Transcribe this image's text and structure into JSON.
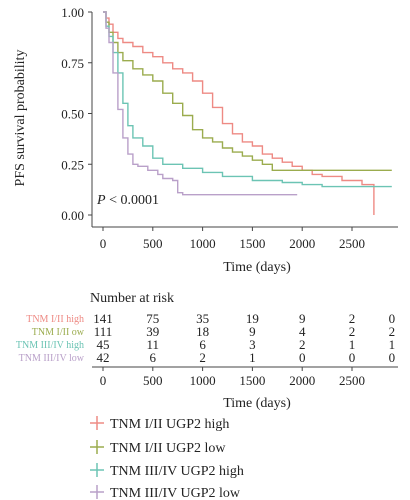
{
  "chart_data": {
    "type": "line",
    "subtype": "kaplan-meier step curves",
    "title": "",
    "xlabel": "Time (days)",
    "ylabel": "PFS survival probability",
    "xlim": [
      0,
      2900
    ],
    "ylim": [
      0,
      1
    ],
    "x_ticks": [
      0,
      500,
      1000,
      1500,
      2000,
      2500
    ],
    "y_ticks": [
      "0.00",
      "0.25",
      "0.50",
      "0.75",
      "1.00"
    ],
    "grid": false,
    "annotation": "P < 0.0001",
    "series": [
      {
        "name": "TNM I/II UGP2 high",
        "color": "#ee8a84",
        "points": [
          [
            0,
            1.0
          ],
          [
            30,
            0.97
          ],
          [
            60,
            0.94
          ],
          [
            100,
            0.9
          ],
          [
            150,
            0.87
          ],
          [
            200,
            0.85
          ],
          [
            300,
            0.83
          ],
          [
            400,
            0.8
          ],
          [
            500,
            0.78
          ],
          [
            600,
            0.75
          ],
          [
            700,
            0.72
          ],
          [
            800,
            0.7
          ],
          [
            900,
            0.66
          ],
          [
            1000,
            0.6
          ],
          [
            1100,
            0.53
          ],
          [
            1200,
            0.45
          ],
          [
            1300,
            0.4
          ],
          [
            1400,
            0.36
          ],
          [
            1500,
            0.34
          ],
          [
            1600,
            0.3
          ],
          [
            1700,
            0.28
          ],
          [
            1800,
            0.26
          ],
          [
            1900,
            0.24
          ],
          [
            2000,
            0.22
          ],
          [
            2100,
            0.2
          ],
          [
            2200,
            0.19
          ],
          [
            2400,
            0.17
          ],
          [
            2600,
            0.15
          ],
          [
            2720,
            0.15
          ],
          [
            2720,
            0.0
          ]
        ]
      },
      {
        "name": "TNM I/II UGP2 low",
        "color": "#9bac4e",
        "points": [
          [
            0,
            1.0
          ],
          [
            30,
            0.95
          ],
          [
            60,
            0.9
          ],
          [
            100,
            0.85
          ],
          [
            150,
            0.8
          ],
          [
            200,
            0.76
          ],
          [
            300,
            0.72
          ],
          [
            400,
            0.69
          ],
          [
            500,
            0.66
          ],
          [
            600,
            0.6
          ],
          [
            700,
            0.55
          ],
          [
            800,
            0.49
          ],
          [
            900,
            0.42
          ],
          [
            1000,
            0.38
          ],
          [
            1100,
            0.36
          ],
          [
            1200,
            0.33
          ],
          [
            1300,
            0.31
          ],
          [
            1400,
            0.29
          ],
          [
            1500,
            0.27
          ],
          [
            1600,
            0.25
          ],
          [
            1700,
            0.22
          ],
          [
            1800,
            0.22
          ],
          [
            2900,
            0.22
          ]
        ]
      },
      {
        "name": "TNM III/IV UGP2 high",
        "color": "#6cc4b4",
        "points": [
          [
            0,
            1.0
          ],
          [
            30,
            0.93
          ],
          [
            60,
            0.88
          ],
          [
            100,
            0.8
          ],
          [
            150,
            0.7
          ],
          [
            200,
            0.55
          ],
          [
            250,
            0.44
          ],
          [
            300,
            0.38
          ],
          [
            400,
            0.34
          ],
          [
            500,
            0.28
          ],
          [
            600,
            0.25
          ],
          [
            800,
            0.23
          ],
          [
            1000,
            0.21
          ],
          [
            1200,
            0.19
          ],
          [
            1500,
            0.17
          ],
          [
            1800,
            0.16
          ],
          [
            2000,
            0.15
          ],
          [
            2200,
            0.14
          ],
          [
            2900,
            0.14
          ]
        ]
      },
      {
        "name": "TNM III/IV UGP2 low",
        "color": "#b9a0c9",
        "points": [
          [
            0,
            1.0
          ],
          [
            30,
            0.92
          ],
          [
            60,
            0.85
          ],
          [
            100,
            0.7
          ],
          [
            150,
            0.52
          ],
          [
            200,
            0.38
          ],
          [
            250,
            0.3
          ],
          [
            300,
            0.25
          ],
          [
            350,
            0.24
          ],
          [
            450,
            0.22
          ],
          [
            550,
            0.2
          ],
          [
            600,
            0.18
          ],
          [
            700,
            0.17
          ],
          [
            750,
            0.11
          ],
          [
            800,
            0.1
          ],
          [
            1950,
            0.1
          ]
        ]
      }
    ],
    "risk_table": {
      "title": "Number at risk",
      "times": [
        0,
        500,
        1000,
        1500,
        2000,
        2500,
        2900
      ],
      "x_tick_labels": [
        "0",
        "500",
        "1000",
        "1500",
        "2000",
        "2500"
      ],
      "xlabel": "Time (days)",
      "rows": [
        {
          "label": "TNM I/II high",
          "color": "#ee8a84",
          "values": [
            "141",
            "75",
            "35",
            "19",
            "9",
            "2",
            "0"
          ]
        },
        {
          "label": "TNM I/II ow",
          "color": "#9bac4e",
          "values": [
            "111",
            "39",
            "18",
            "9",
            "4",
            "2",
            "2"
          ]
        },
        {
          "label": "TNM III/IV high",
          "color": "#6cc4b4",
          "values": [
            "45",
            "11",
            "6",
            "3",
            "2",
            "1",
            "1"
          ]
        },
        {
          "label": "TNM III/IV low",
          "color": "#b9a0c9",
          "values": [
            "42",
            "6",
            "2",
            "1",
            "0",
            "0",
            "0"
          ]
        }
      ]
    },
    "legend": {
      "placement": "bottom-left",
      "entries": [
        "TNM I/II UGP2 high",
        "TNM I/II UGP2 low",
        "TNM III/IV UGP2 high",
        "TNM III/IV UGP2 low"
      ]
    }
  }
}
